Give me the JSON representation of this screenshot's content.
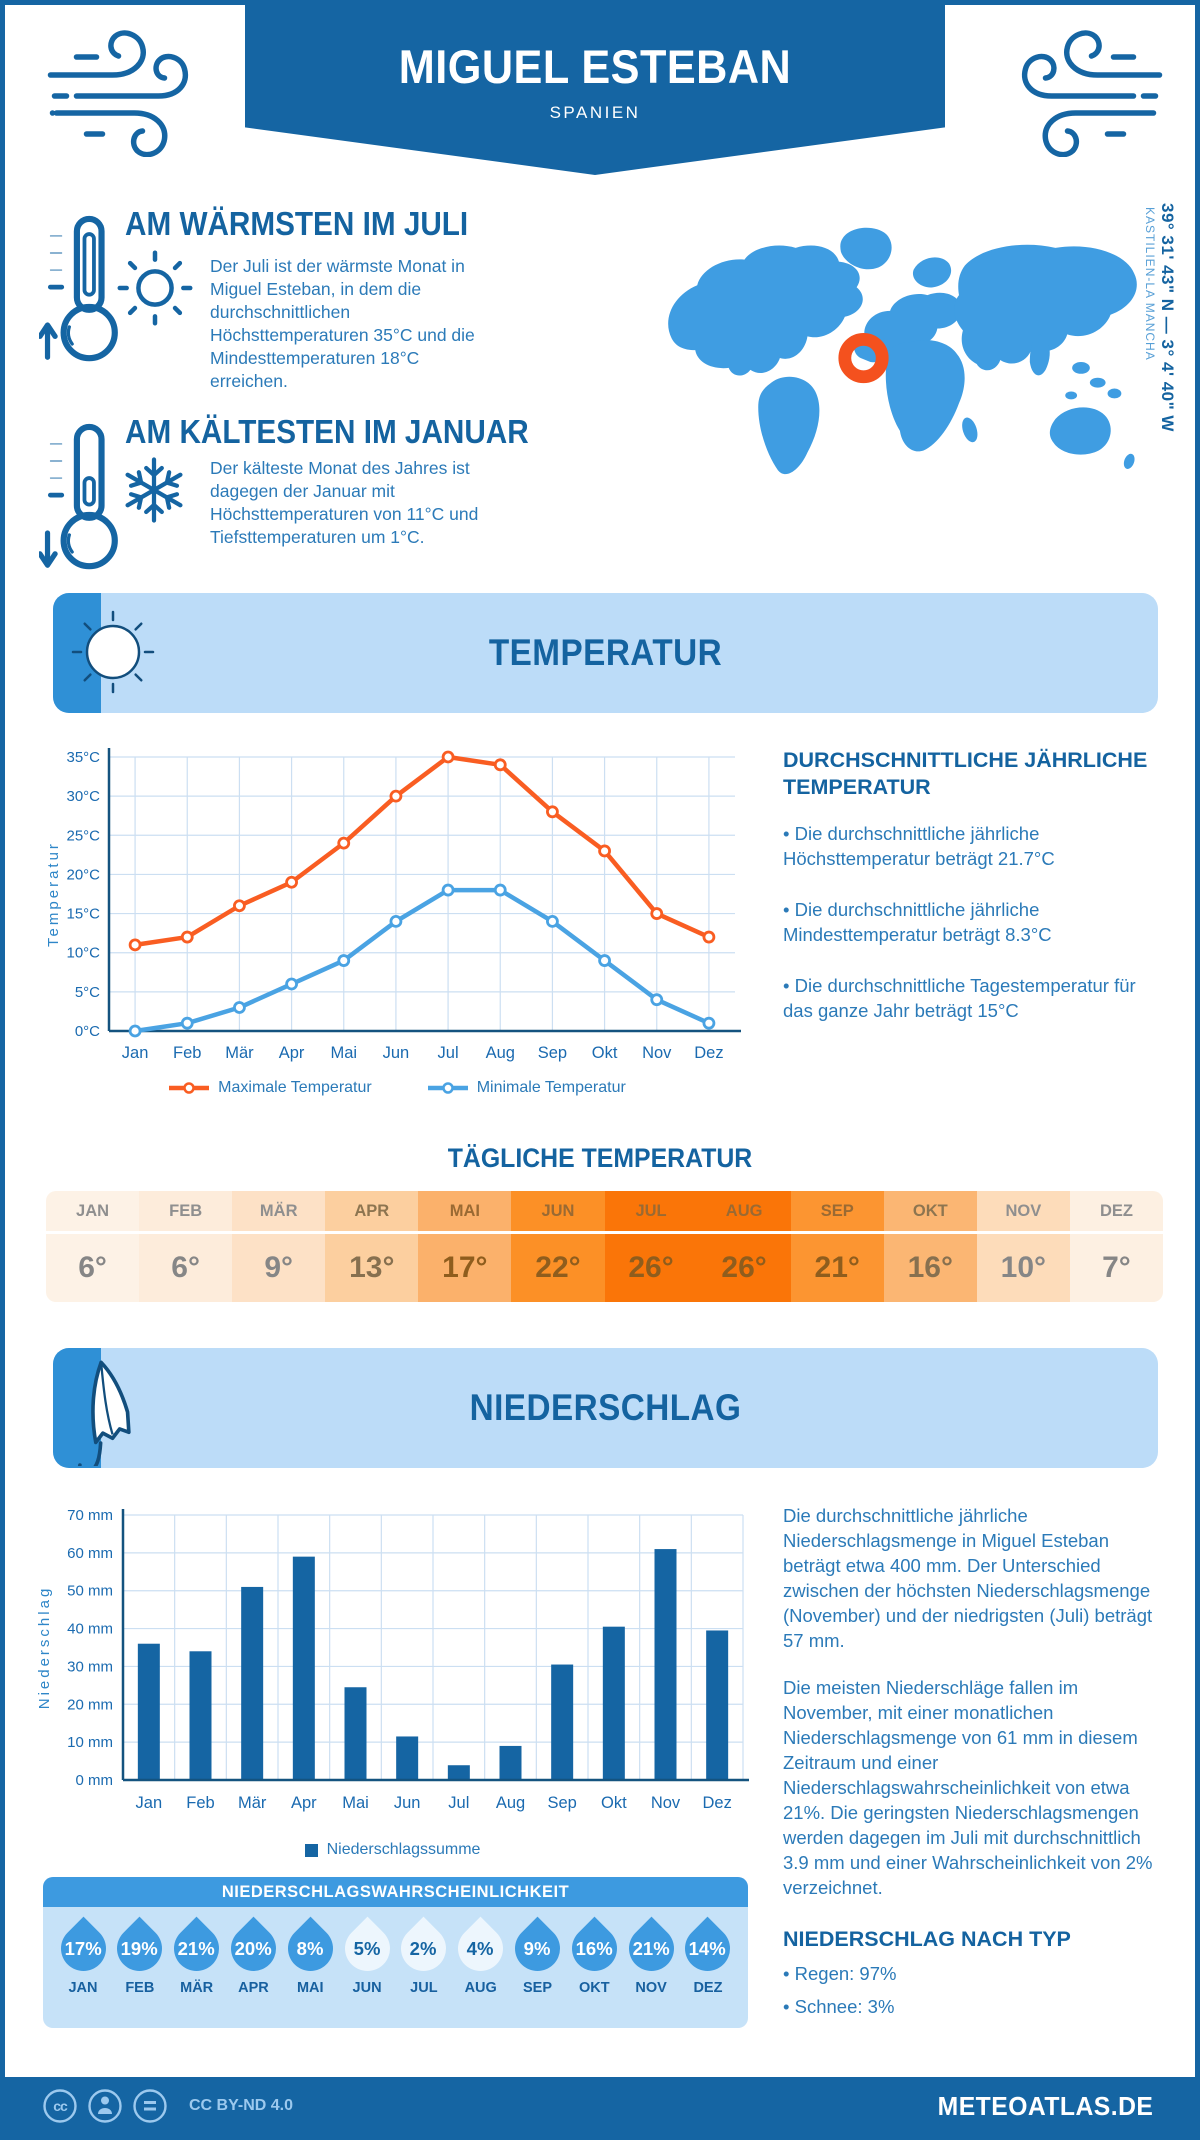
{
  "colors": {
    "primary": "#1565a3",
    "heading": "#1463a0",
    "body_text": "#2b7ab8",
    "map_blue": "#3f9de2",
    "marker_orange": "#f4511e",
    "banner_bg": "#bcdcf8",
    "banner_tab": "#2f90d6",
    "grid": "#ccdff2",
    "max_line": "#f95d22",
    "min_line": "#4aa3e3",
    "prob_header": "#3d9ae0",
    "prob_panel_bg": "#c6e2f8",
    "drop_blue": "#3d9ae0",
    "drop_light": "#edf6fd",
    "footer_light": "#9cc9ee"
  },
  "header": {
    "title": "MIGUEL ESTEBAN",
    "subtitle": "SPANIEN"
  },
  "highlights": {
    "warm": {
      "title": "AM WÄRMSTEN IM JULI",
      "text": "Der Juli ist der wärmste Monat in Miguel Esteban, in dem die durchschnittlichen Höchsttemperaturen 35°C und die Mindesttemperaturen 18°C erreichen."
    },
    "cold": {
      "title": "AM KÄLTESTEN IM JANUAR",
      "text": "Der kälteste Monat des Jahres ist dagegen der Januar mit Höchsttemperaturen von 11°C und Tiefsttemperaturen um 1°C."
    }
  },
  "map": {
    "coordinates": "39° 31' 43\" N — 3° 4' 40\" W",
    "region": "KASTILIEN-LA MANCHA"
  },
  "temperature": {
    "banner_title": "TEMPERATUR",
    "annual": {
      "title": "DURCHSCHNITTLICHE JÄHRLICHE TEMPERATUR",
      "bullets": [
        "Die durchschnittliche jährliche Höchsttemperatur beträgt 21.7°C",
        "Die durchschnittliche jährliche Mindesttemperatur beträgt 8.3°C",
        "Die durchschnittliche Tagestemperatur für das ganze Jahr beträgt 15°C"
      ]
    },
    "daily": {
      "title": "TÄGLICHE TEMPERATUR",
      "months": [
        "JAN",
        "FEB",
        "MÄR",
        "APR",
        "MAI",
        "JUN",
        "JUL",
        "AUG",
        "SEP",
        "OKT",
        "NOV",
        "DEZ"
      ],
      "values": [
        "6°",
        "6°",
        "9°",
        "13°",
        "17°",
        "22°",
        "26°",
        "26°",
        "21°",
        "16°",
        "10°",
        "7°"
      ],
      "numeric": [
        6,
        6,
        9,
        13,
        17,
        22,
        26,
        26,
        21,
        16,
        10,
        7
      ],
      "cell_colors": [
        "#fdf2e6",
        "#fdecdb",
        "#fde1c6",
        "#fccf9f",
        "#fbb16b",
        "#fc9026",
        "#fa7508",
        "#fa7508",
        "#fc9531",
        "#fbb673",
        "#fddcba",
        "#fdf0e2"
      ]
    }
  },
  "precipitation": {
    "banner_title": "NIEDERSCHLAG",
    "text1": "Die durchschnittliche jährliche Niederschlagsmenge in Miguel Esteban beträgt etwa 400 mm. Der Unterschied zwischen der höchsten Niederschlagsmenge (November) und der niedrigsten (Juli) beträgt 57 mm.",
    "text2": "Die meisten Niederschläge fallen im November, mit einer monatlichen Niederschlagsmenge von 61 mm in diesem Zeitraum und einer Niederschlagswahrscheinlichkeit von etwa 21%. Die geringsten Niederschlagsmengen werden dagegen im Juli mit durchschnittlich 3.9 mm und einer Wahrscheinlichkeit von 2% verzeichnet.",
    "by_type": {
      "title": "NIEDERSCHLAG NACH TYP",
      "bullets": [
        "Regen: 97%",
        "Schnee: 3%"
      ]
    },
    "probability": {
      "title": "NIEDERSCHLAGSWAHRSCHEINLICHKEIT",
      "months": [
        "JAN",
        "FEB",
        "MÄR",
        "APR",
        "MAI",
        "JUN",
        "JUL",
        "AUG",
        "SEP",
        "OKT",
        "NOV",
        "DEZ"
      ],
      "values": [
        "17%",
        "19%",
        "21%",
        "20%",
        "8%",
        "5%",
        "2%",
        "4%",
        "9%",
        "16%",
        "21%",
        "14%"
      ],
      "light_months": [
        5,
        6,
        7
      ]
    }
  },
  "chart_data": [
    {
      "type": "line",
      "categories": [
        "Jan",
        "Feb",
        "Mär",
        "Apr",
        "Mai",
        "Jun",
        "Jul",
        "Aug",
        "Sep",
        "Okt",
        "Nov",
        "Dez"
      ],
      "series": [
        {
          "name": "Maximale Temperatur",
          "color": "#f95d22",
          "values": [
            11,
            12,
            16,
            19,
            24,
            30,
            35,
            34,
            28,
            23,
            15,
            12
          ]
        },
        {
          "name": "Minimale Temperatur",
          "color": "#4aa3e3",
          "values": [
            0,
            1,
            3,
            6,
            9,
            14,
            18,
            18,
            14,
            9,
            4,
            1
          ]
        }
      ],
      "ylabel": "Temperatur",
      "ylim": [
        0,
        35
      ],
      "ytick_step": 5,
      "ytick_suffix": "°C",
      "grid": true,
      "legend_position": "bottom"
    },
    {
      "type": "bar",
      "categories": [
        "Jan",
        "Feb",
        "Mär",
        "Apr",
        "Mai",
        "Jun",
        "Jul",
        "Aug",
        "Sep",
        "Okt",
        "Nov",
        "Dez"
      ],
      "series": [
        {
          "name": "Niederschlagssumme",
          "color": "#1565a3",
          "values": [
            36,
            34,
            51,
            59,
            24.5,
            11.5,
            3.9,
            9,
            30.5,
            40.5,
            61,
            39.5
          ]
        }
      ],
      "ylabel": "Niederschlag",
      "ylim": [
        0,
        70
      ],
      "ytick_step": 10,
      "ytick_suffix": " mm",
      "grid": true,
      "legend_position": "bottom"
    }
  ],
  "footer": {
    "license": "CC BY-ND 4.0",
    "brand": "METEOATLAS.DE"
  }
}
